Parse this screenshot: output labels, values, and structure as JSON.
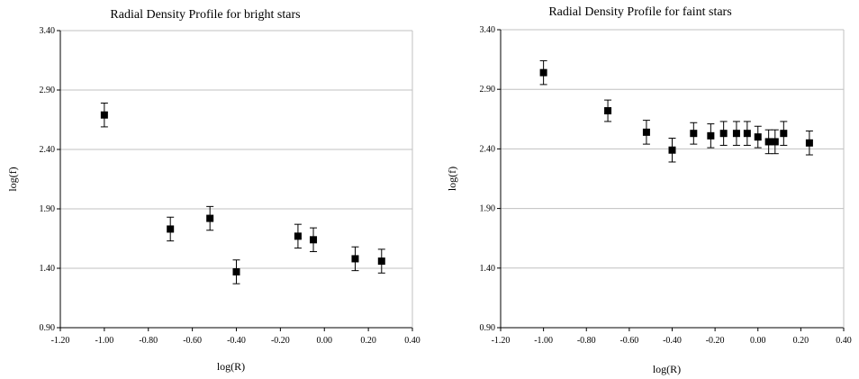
{
  "chart_data": [
    {
      "type": "scatter",
      "title": "Radial Density Profile for bright stars",
      "xlabel": "log(R)",
      "ylabel": "log(f)",
      "xlim": [
        -1.2,
        0.4
      ],
      "ylim": [
        0.9,
        3.4
      ],
      "x_ticks": [
        "-1.20",
        "-1.00",
        "-0.80",
        "-0.60",
        "-0.40",
        "-0.20",
        "0.00",
        "0.20",
        "0.40"
      ],
      "y_ticks": [
        "0.90",
        "1.40",
        "1.90",
        "2.40",
        "2.90",
        "3.40"
      ],
      "grid": "horizontal",
      "error_bars": true,
      "points": [
        {
          "x": -1.0,
          "y": 2.69,
          "err": 0.1
        },
        {
          "x": -0.7,
          "y": 1.73,
          "err": 0.1
        },
        {
          "x": -0.52,
          "y": 1.82,
          "err": 0.1
        },
        {
          "x": -0.4,
          "y": 1.37,
          "err": 0.1
        },
        {
          "x": -0.12,
          "y": 1.67,
          "err": 0.1
        },
        {
          "x": -0.05,
          "y": 1.64,
          "err": 0.1
        },
        {
          "x": 0.14,
          "y": 1.48,
          "err": 0.1
        },
        {
          "x": 0.26,
          "y": 1.46,
          "err": 0.1
        }
      ]
    },
    {
      "type": "scatter",
      "title": "Radial Density Profile for faint stars",
      "xlabel": "log(R)",
      "ylabel": "log(f)",
      "xlim": [
        -1.2,
        0.4
      ],
      "ylim": [
        0.9,
        3.4
      ],
      "x_ticks": [
        "-1.20",
        "-1.00",
        "-0.80",
        "-0.60",
        "-0.40",
        "-0.20",
        "0.00",
        "0.20",
        "0.40"
      ],
      "y_ticks": [
        "0.90",
        "1.40",
        "1.90",
        "2.40",
        "2.90",
        "3.40"
      ],
      "grid": "horizontal",
      "error_bars": true,
      "points": [
        {
          "x": -1.0,
          "y": 3.04,
          "err": 0.1
        },
        {
          "x": -0.7,
          "y": 2.72,
          "err": 0.09
        },
        {
          "x": -0.52,
          "y": 2.54,
          "err": 0.1
        },
        {
          "x": -0.4,
          "y": 2.39,
          "err": 0.1
        },
        {
          "x": -0.3,
          "y": 2.53,
          "err": 0.09
        },
        {
          "x": -0.22,
          "y": 2.51,
          "err": 0.1
        },
        {
          "x": -0.16,
          "y": 2.53,
          "err": 0.1
        },
        {
          "x": -0.1,
          "y": 2.53,
          "err": 0.1
        },
        {
          "x": -0.05,
          "y": 2.53,
          "err": 0.1
        },
        {
          "x": 0.0,
          "y": 2.5,
          "err": 0.09
        },
        {
          "x": 0.05,
          "y": 2.46,
          "err": 0.1
        },
        {
          "x": 0.08,
          "y": 2.46,
          "err": 0.1
        },
        {
          "x": 0.12,
          "y": 2.53,
          "err": 0.1
        },
        {
          "x": 0.24,
          "y": 2.45,
          "err": 0.1
        }
      ]
    }
  ]
}
